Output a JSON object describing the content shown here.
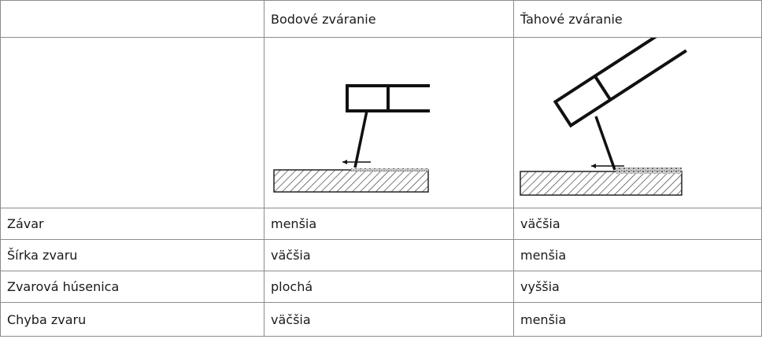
{
  "table": {
    "header": [
      "Bodové zváranie",
      "Ťahové zváranie"
    ],
    "rows": [
      [
        "Závar",
        "menšia",
        "väčšia"
      ],
      [
        "Šírka zvaru",
        "väčšia",
        "menšia"
      ],
      [
        "Zvarová húsenica",
        "plochá",
        "vyššia"
      ],
      [
        "Chyba zvaru",
        "väčšia",
        "menšia"
      ]
    ]
  }
}
